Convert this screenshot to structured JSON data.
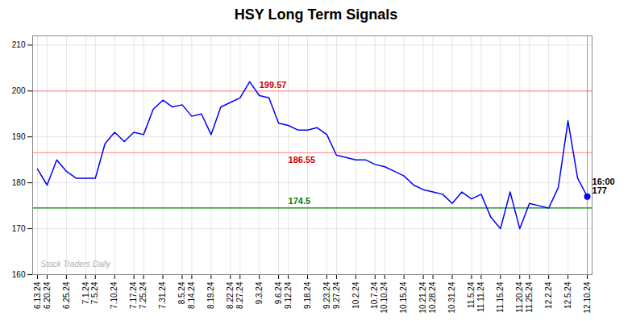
{
  "chart_data": {
    "type": "line",
    "title": "HSY Long Term Signals",
    "categories": [
      "6.13.24",
      "6.20.24",
      null,
      "6.25.24",
      null,
      "7.1.24",
      "7.5.24",
      null,
      "7.10.24",
      null,
      "7.17.24",
      "7.25.24",
      null,
      "7.31.24",
      null,
      "8.5.24",
      "8.14.24",
      null,
      "8.19.24",
      null,
      "8.22.24",
      "8.27.24",
      null,
      "9.3.24",
      null,
      "9.6.24",
      "9.12.24",
      null,
      "9.18.24",
      null,
      "9.23.24",
      "9.27.24",
      null,
      "10.2.24",
      null,
      "10.7.24",
      "10.10.24",
      null,
      "10.15.24",
      null,
      "10.21.24",
      "10.28.24",
      null,
      "10.31.24",
      null,
      "11.5.24",
      "11.11.24",
      null,
      "11.15.24",
      null,
      "11.20.24",
      "11.25.24",
      null,
      "12.2.24",
      null,
      "12.5.24",
      null,
      "12.10.24"
    ],
    "values": [
      183.0,
      179.5,
      185.0,
      182.5,
      181.0,
      181.0,
      181.0,
      188.5,
      191.0,
      189.0,
      191.0,
      190.5,
      196.0,
      198.0,
      196.5,
      197.0,
      194.5,
      195.0,
      190.5,
      196.5,
      197.5,
      198.5,
      202.0,
      199.0,
      198.5,
      193.0,
      192.5,
      191.5,
      191.5,
      192.0,
      190.5,
      186.0,
      185.5,
      185.0,
      185.0,
      184.0,
      183.5,
      182.5,
      181.5,
      179.5,
      178.5,
      178.0,
      177.5,
      175.5,
      178.0,
      176.5,
      177.5,
      172.5,
      170.0,
      178.0,
      170.0,
      175.5,
      175.0,
      174.5,
      179.0,
      193.5,
      181.0,
      177.0
    ],
    "color": "blue",
    "ylim": [
      160,
      212
    ],
    "yticks": [
      160,
      170,
      180,
      190,
      200,
      210
    ],
    "grid": true,
    "reference_lines": [
      {
        "value": 200.0,
        "color": "#ff9999"
      },
      {
        "value": 186.55,
        "color": "#ff9999",
        "label": "186.55",
        "label_color": "#cc0000"
      },
      {
        "value": 174.5,
        "color": "green",
        "label": "174.5",
        "label_color": "green"
      }
    ],
    "peak_label": {
      "text": "199.57",
      "color": "#cc0000"
    },
    "last_label": [
      "16:00",
      "177"
    ],
    "watermark": "Stock Traders Daily"
  }
}
